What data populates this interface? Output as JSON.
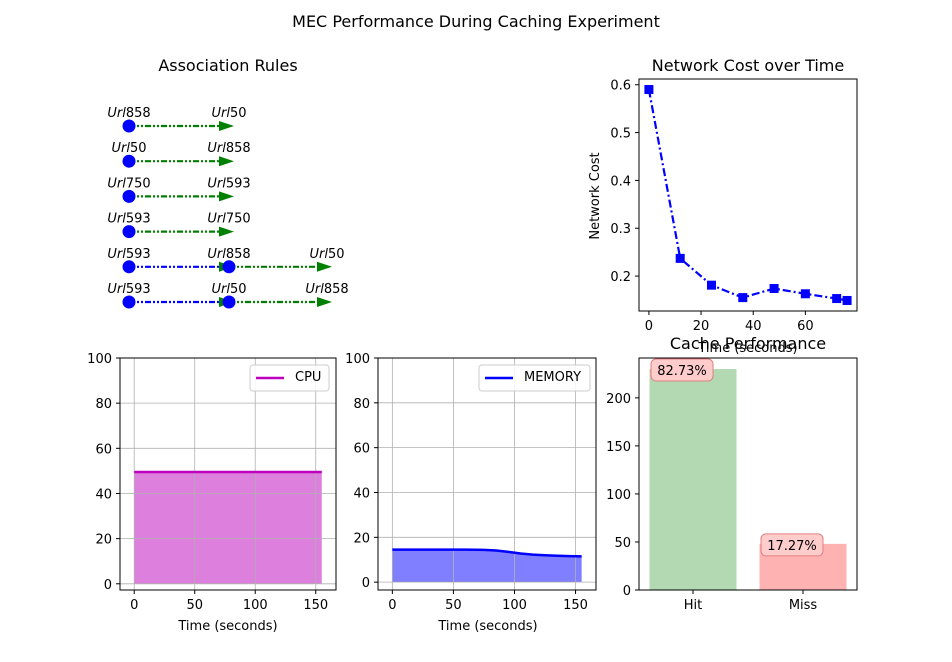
{
  "figure": {
    "suptitle": "MEC Performance During Caching Experiment"
  },
  "association": {
    "title": "Association Rules",
    "rules": [
      {
        "items": [
          "Url858",
          "Url50"
        ],
        "color": "#008000"
      },
      {
        "items": [
          "Url50",
          "Url858"
        ],
        "color": "#008000"
      },
      {
        "items": [
          "Url750",
          "Url593"
        ],
        "color": "#008000"
      },
      {
        "items": [
          "Url593",
          "Url750"
        ],
        "color": "#008000"
      },
      {
        "items": [
          "Url593",
          "Url858",
          "Url50"
        ],
        "color": "#0000ff"
      },
      {
        "items": [
          "Url593",
          "Url50",
          "Url858"
        ],
        "color": "#0000ff"
      }
    ]
  },
  "chart_data": [
    {
      "type": "line",
      "title": "Network Cost over Time",
      "xlabel": "Time (seconds)",
      "ylabel": "Network Cost",
      "x": [
        0,
        12,
        24,
        36,
        48,
        60,
        72,
        76
      ],
      "values": [
        0.59,
        0.237,
        0.181,
        0.155,
        0.174,
        0.163,
        0.153,
        0.149
      ],
      "xticks": [
        "0",
        "20",
        "40",
        "60"
      ],
      "yticks": [
        "0.2",
        "0.3",
        "0.4",
        "0.5",
        "0.6"
      ],
      "color": "#0000ff",
      "marker": "square",
      "linestyle": "dash-dot"
    },
    {
      "type": "area",
      "legend": "CPU",
      "xlabel": "Time (seconds)",
      "ylabel": "",
      "x": [
        0,
        155
      ],
      "values": [
        49.5,
        49.5
      ],
      "ylim": [
        0,
        100
      ],
      "xticks": [
        "0",
        "50",
        "100",
        "150"
      ],
      "yticks": [
        "0",
        "20",
        "40",
        "60",
        "80",
        "100"
      ],
      "line_color": "#bf00bf",
      "fill_color": "#dd7fdd",
      "grid": true,
      "legend_position": "top-right"
    },
    {
      "type": "area",
      "legend": "MEMORY",
      "xlabel": "Time (seconds)",
      "ylabel": "",
      "x": [
        0,
        20,
        40,
        60,
        75,
        85,
        95,
        105,
        115,
        125,
        135,
        145,
        155
      ],
      "values": [
        14.5,
        14.5,
        14.5,
        14.5,
        14.4,
        14.1,
        13.5,
        12.8,
        12.3,
        12.0,
        11.8,
        11.6,
        11.5
      ],
      "ylim": [
        0,
        100
      ],
      "xticks": [
        "0",
        "50",
        "100",
        "150"
      ],
      "yticks": [
        "0",
        "20",
        "40",
        "60",
        "80",
        "100"
      ],
      "line_color": "#0000ff",
      "fill_color": "#7f7fff",
      "grid": true,
      "legend_position": "top-right"
    },
    {
      "type": "bar",
      "title": "Cache Performance",
      "categories": [
        "Hit",
        "Miss"
      ],
      "values": [
        230,
        48
      ],
      "labels": [
        "82.73%",
        "17.27%"
      ],
      "colors": [
        "#b2d9b2",
        "#ffb2b2"
      ],
      "yticks": [
        "0",
        "50",
        "100",
        "150",
        "200"
      ]
    }
  ]
}
